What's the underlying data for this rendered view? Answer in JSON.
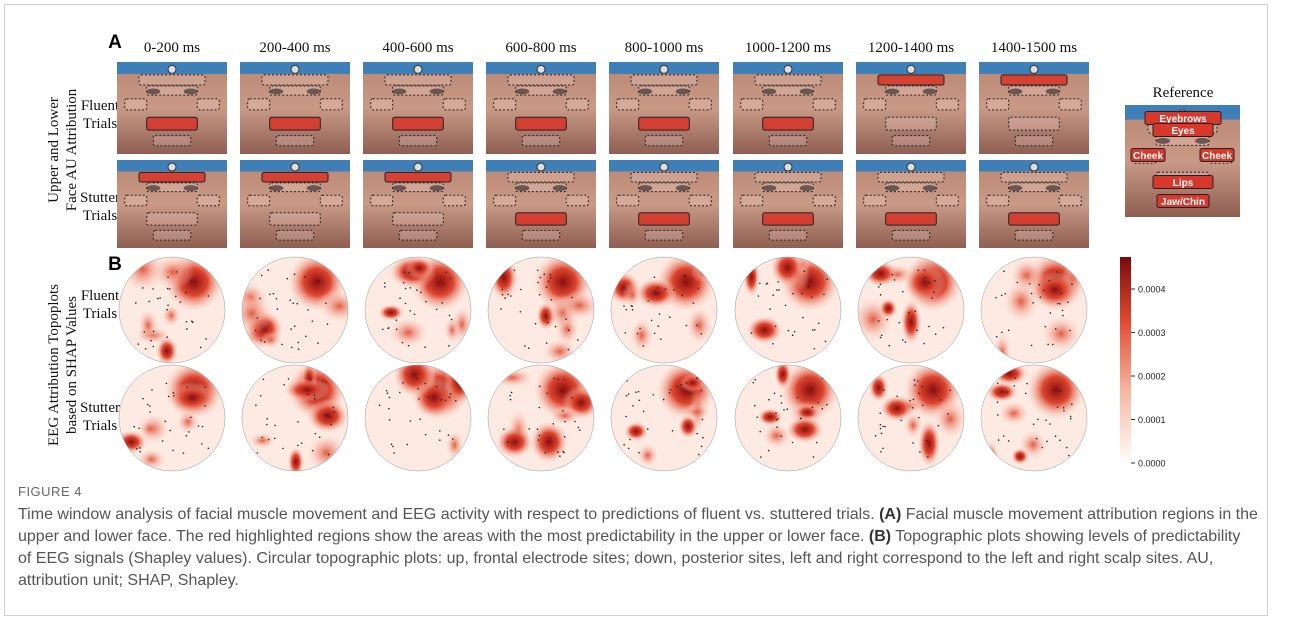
{
  "panel_a": {
    "label": "A",
    "time_windows": [
      "0-200 ms",
      "200-400 ms",
      "400-600 ms",
      "600-800 ms",
      "800-1000 ms",
      "1000-1200 ms",
      "1200-1400 ms",
      "1400-1500 ms"
    ],
    "y_axis_label_lines": [
      "Upper and Lower",
      "Face AU Attribution"
    ],
    "row_labels": [
      [
        "Fluent",
        "Trials"
      ],
      [
        "Stutter",
        "Trials"
      ]
    ],
    "reference": {
      "title": "Reference",
      "regions": [
        "Eyebrows",
        "Eyes",
        "Cheek",
        "Cheek",
        "Lips",
        "Jaw/Chin"
      ]
    }
  },
  "panel_b": {
    "label": "B",
    "y_axis_label_lines": [
      "EEG Attribution Topoplots",
      "based on SHAP Values"
    ],
    "row_labels": [
      [
        "Fluent",
        "Trials"
      ],
      [
        "Stutter",
        "Trials"
      ]
    ],
    "colorbar_ticks": [
      "0.0004",
      "0.0003",
      "0.0002",
      "0.0001",
      "0.0000"
    ]
  },
  "caption": {
    "figure_label": "FIGURE 4",
    "parts": [
      "Time window analysis of facial muscle movement and EEG activity with respect to predictions of fluent vs. stuttered trials. ",
      "(A)",
      " Facial muscle movement attribution regions in the upper and lower face. The red highlighted regions show the areas with the most predictability in the upper or lower face. ",
      "(B)",
      " Topographic plots showing levels of predictability of EEG signals (Shapley values). Circular topographic plots: up, frontal electrode sites; down, posterior sites, left and right correspond to the left and right scalp sites. AU, attribution unit; SHAP, Shapley."
    ]
  }
}
